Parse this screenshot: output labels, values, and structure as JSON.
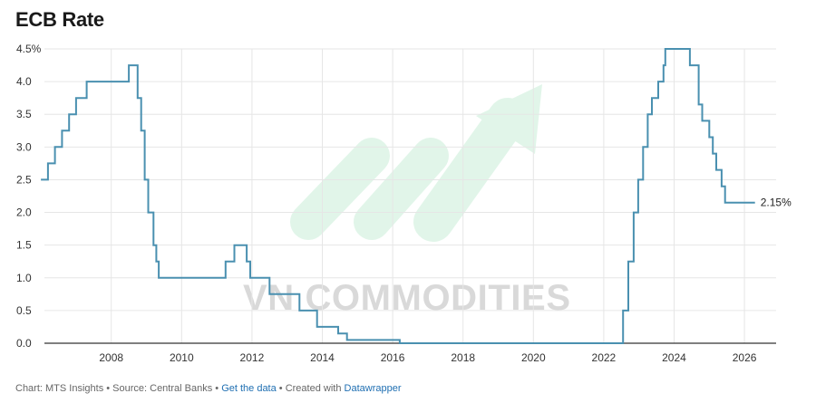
{
  "title": "ECB Rate",
  "watermark": "VN COMMODITIES",
  "end_label": "2.15%",
  "footer": {
    "prefix": "Chart: MTS Insights • Source: Central Banks • ",
    "get_data": "Get the data",
    "middle": " • Created with ",
    "tool": "Datawrapper"
  },
  "colors": {
    "line": "#4a90b0",
    "grid": "#e6e6e6",
    "axis": "#333333",
    "watermark_green": "#a8e0c0"
  },
  "chart_data": {
    "type": "line",
    "title": "ECB Rate",
    "xlabel": "",
    "ylabel": "",
    "interpolation": "step-after",
    "xlim": [
      2006.1,
      2026.9
    ],
    "ylim": [
      0,
      4.5
    ],
    "x_ticks": [
      2008,
      2010,
      2012,
      2014,
      2016,
      2018,
      2020,
      2022,
      2024,
      2026
    ],
    "y_ticks": [
      0,
      0.5,
      1,
      1.5,
      2,
      2.5,
      3,
      3.5,
      4,
      4.5
    ],
    "y_tick_labels": [
      "0.0",
      "0.5",
      "1.0",
      "1.5",
      "2.0",
      "2.5",
      "3.0",
      "3.5",
      "4.0",
      "4.5%"
    ],
    "grid": true,
    "series": [
      {
        "name": "",
        "points": [
          [
            2006.0,
            2.5
          ],
          [
            2006.2,
            2.75
          ],
          [
            2006.4,
            3.0
          ],
          [
            2006.6,
            3.25
          ],
          [
            2006.8,
            3.5
          ],
          [
            2007.0,
            3.75
          ],
          [
            2007.3,
            4.0
          ],
          [
            2008.5,
            4.25
          ],
          [
            2008.75,
            3.75
          ],
          [
            2008.85,
            3.25
          ],
          [
            2008.95,
            2.5
          ],
          [
            2009.05,
            2.0
          ],
          [
            2009.2,
            1.5
          ],
          [
            2009.28,
            1.25
          ],
          [
            2009.35,
            1.0
          ],
          [
            2011.25,
            1.25
          ],
          [
            2011.5,
            1.5
          ],
          [
            2011.85,
            1.25
          ],
          [
            2011.95,
            1.0
          ],
          [
            2012.5,
            0.75
          ],
          [
            2013.35,
            0.5
          ],
          [
            2013.85,
            0.25
          ],
          [
            2014.45,
            0.15
          ],
          [
            2014.7,
            0.05
          ],
          [
            2016.2,
            0.0
          ],
          [
            2022.55,
            0.5
          ],
          [
            2022.7,
            1.25
          ],
          [
            2022.85,
            2.0
          ],
          [
            2022.98,
            2.5
          ],
          [
            2023.12,
            3.0
          ],
          [
            2023.25,
            3.5
          ],
          [
            2023.37,
            3.75
          ],
          [
            2023.55,
            4.0
          ],
          [
            2023.7,
            4.25
          ],
          [
            2023.75,
            4.5
          ],
          [
            2024.45,
            4.25
          ],
          [
            2024.7,
            3.65
          ],
          [
            2024.8,
            3.4
          ],
          [
            2025.0,
            3.15
          ],
          [
            2025.1,
            2.9
          ],
          [
            2025.2,
            2.65
          ],
          [
            2025.35,
            2.4
          ],
          [
            2025.45,
            2.15
          ],
          [
            2026.3,
            2.15
          ]
        ]
      }
    ]
  }
}
